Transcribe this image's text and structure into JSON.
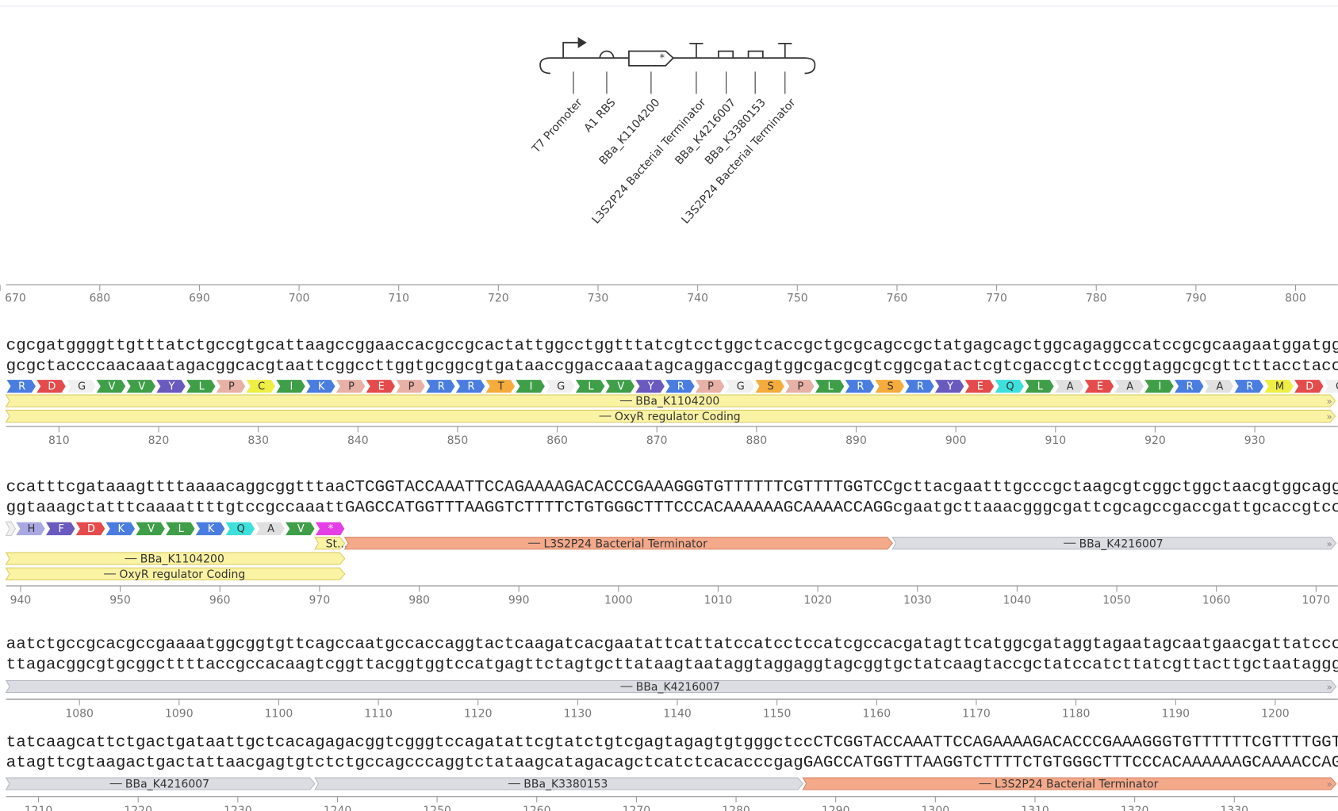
{
  "map": {
    "labels": [
      "T7 Promoter",
      "A1 RBS",
      "BBa_K1104200",
      "L3S2P24 Bacterial Terminator",
      "BBa_K4216007",
      "BBa_K3380153",
      "L3S2P24 Bacterial Terminator"
    ]
  },
  "top_ruler": [
    670,
    680,
    690,
    700,
    710,
    720,
    730,
    740,
    750,
    760,
    770,
    780,
    790,
    800
  ],
  "rows": [
    {
      "forward": "cgcgatggggttgtttatctgccgtgcattaagccggaaccacgccgcactattggcctggtttatcgtcctggctcaccgctgcgcagccgctatgagcagctggcagaggccatccgcgcaagaatggatgg",
      "reverse": "gcgctaccccaacaaatagacggcacgtaattcggccttggtgcggcgtgataaccggaccaaatagcaggaccgagtggcgacgcgtcggcgatactcgtcgaccgtctccggtaggcgcgttcttacctacc",
      "amino_acids": [
        "R",
        "D",
        "G",
        "V",
        "V",
        "Y",
        "L",
        "P",
        "C",
        "I",
        "K",
        "P",
        "E",
        "P",
        "R",
        "R",
        "T",
        "I",
        "G",
        "L",
        "V",
        "Y",
        "R",
        "P",
        "G",
        "S",
        "P",
        "L",
        "R",
        "S",
        "R",
        "Y",
        "E",
        "Q",
        "L",
        "A",
        "E",
        "A",
        "I",
        "R",
        "A",
        "R",
        "M",
        "D",
        "G"
      ],
      "annotations": [
        "BBa_K1104200",
        "OxyR regulator Coding"
      ],
      "ruler": [
        810,
        820,
        830,
        840,
        850,
        860,
        870,
        880,
        890,
        900,
        910,
        920,
        930
      ]
    },
    {
      "forward": "ccatttcgataaagttttaaaacaggcggtttaaCTCGGTACCAAATTCCAGAAAAGACACCCGAAAGGGTGTTTTTTCGTTTTGGTCCgcttacgaatttgcccgctaagcgtcggctggctaacgtggcagg",
      "reverse": "ggtaaagctatttcaaaattttgtccgccaaattGAGCCATGGTTTAAGGTCTTTTCTGTGGGCTTTCCCACAAAAAAGCAAAACCAGGcgaatgcttaaacgggcgattcgcagccgaccgattgcaccgtcc",
      "amino_acids": [
        "H",
        "F",
        "D",
        "K",
        "V",
        "L",
        "K",
        "Q",
        "A",
        "V",
        "*"
      ],
      "annotations": [
        "St...",
        "L3S2P24 Bacterial Terminator",
        "BBa_K4216007",
        "BBa_K1104200",
        "OxyR regulator Coding"
      ],
      "ruler": [
        940,
        950,
        960,
        970,
        980,
        990,
        1000,
        1010,
        1020,
        1030,
        1040,
        1050,
        1060,
        1070
      ]
    },
    {
      "forward": "aatctgccgcacgccgaaaatggcggtgttcagccaatgccaccaggtactcaagatcacgaatattcattatccatcctccatcgccacgatagttcatggcgataggtagaatagcaatgaacgattatccc",
      "reverse": "ttagacggcgtgcggcttttaccgccacaagtcggttacggtggtccatgagttctagtgcttataagtaataggtaggaggtagcggtgctatcaagtaccgctatccatcttatcgttacttgctaataggg",
      "amino_acids": [],
      "annotations": [
        "BBa_K4216007"
      ],
      "ruler": [
        1080,
        1090,
        1100,
        1110,
        1120,
        1130,
        1140,
        1150,
        1160,
        1170,
        1180,
        1190,
        1200
      ]
    },
    {
      "forward": "tatcaagcattctgactgataattgctcacagagacggtcgggtccagatattcgtatctgtcgagtagagtgtgggctccCTCGGTACCAAATTCCAGAAAAGACACCCGAAAGGGTGTTTTTTCGTTTTGGTC",
      "reverse": "atagttcgtaagactgactattaacgagtgtctctgccagcccaggtctataagcatagacagctcatctcacacccgagGAGCCATGGTTTAAGGTCTTTTCTGTGGGCTTTCCCACAAAAAAGCAAAACCAG",
      "amino_acids": [],
      "annotations": [
        "BBa_K4216007",
        "BBa_K3380153",
        "L3S2P24 Bacterial Terminator"
      ],
      "ruler": [
        1210,
        1220,
        1230,
        1240,
        1250,
        1260,
        1270,
        1280,
        1290,
        1300,
        1310,
        1320,
        1330
      ]
    }
  ]
}
